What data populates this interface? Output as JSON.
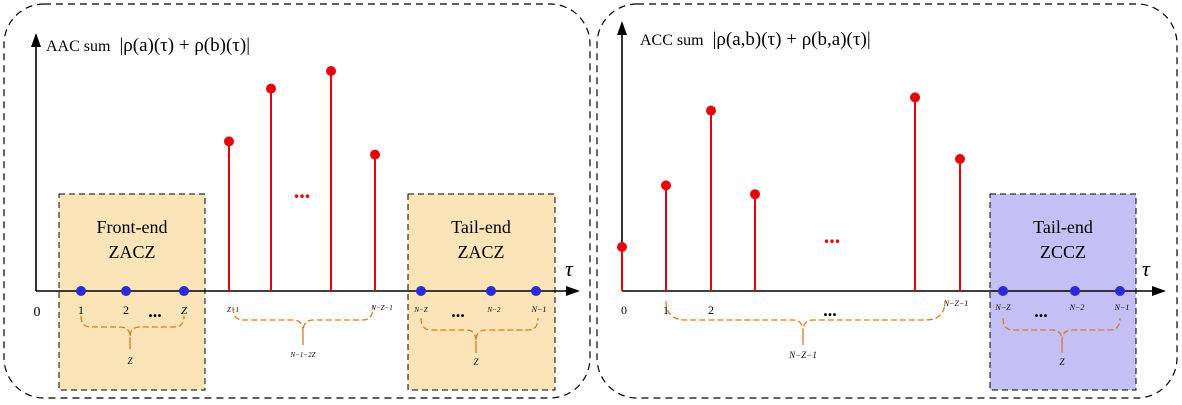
{
  "colors": {
    "stem": "#e8000b",
    "zero_dot": "#2a2ad6",
    "zone_yellow_fill": "#fbe5b8",
    "zone_purple_fill": "#c4c0f5",
    "brace": "#e07820",
    "frame": "#000000"
  },
  "left_panel": {
    "title_prefix": "AAC sum",
    "title_formula": "|ρ(a)(τ) + ρ(b)(τ)|",
    "axis_symbol": "τ",
    "origin_label": "0",
    "ellipsis": "...",
    "front_zone": {
      "line1": "Front-end",
      "line2": "ZACZ"
    },
    "tail_zone": {
      "line1": "Tail-end",
      "line2": "ZACZ"
    },
    "front_ticks": [
      "1",
      "2",
      "...",
      "Z"
    ],
    "front_brace_label": "Z",
    "mid_ticks": [
      "Z+1",
      "N−Z−1"
    ],
    "mid_brace_label": "N−1−2Z",
    "tail_ticks": [
      "N−Z",
      "...",
      "N−2",
      "N−1"
    ],
    "tail_brace_label": "Z",
    "stems": [
      {
        "pos": 0,
        "height": 0.68
      },
      {
        "pos": 1,
        "height": 0.92
      },
      {
        "pos": 2,
        "height": 1.0
      },
      {
        "pos": 3,
        "height": 0.62
      }
    ]
  },
  "right_panel": {
    "title_prefix": "ACC sum",
    "title_formula": "|ρ(a,b)(τ) + ρ(b,a)(τ)|",
    "axis_symbol": "τ",
    "ellipsis": "...",
    "tail_zone": {
      "line1": "Tail-end",
      "line2": "ZCCZ"
    },
    "ticks": [
      "0",
      "1",
      "2",
      "N−Z−1"
    ],
    "brace_label": "N−Z−1",
    "tail_ticks": [
      "N−Z",
      "...",
      "N−2",
      "N−1"
    ],
    "tail_brace_label": "Z",
    "stems": [
      {
        "pos": 0,
        "height": 0.2
      },
      {
        "pos": 1,
        "height": 0.48
      },
      {
        "pos": 2,
        "height": 0.82
      },
      {
        "pos": 3,
        "height": 0.44
      },
      {
        "pos": 4,
        "height": 0.88
      },
      {
        "pos": 5,
        "height": 0.6
      }
    ]
  }
}
